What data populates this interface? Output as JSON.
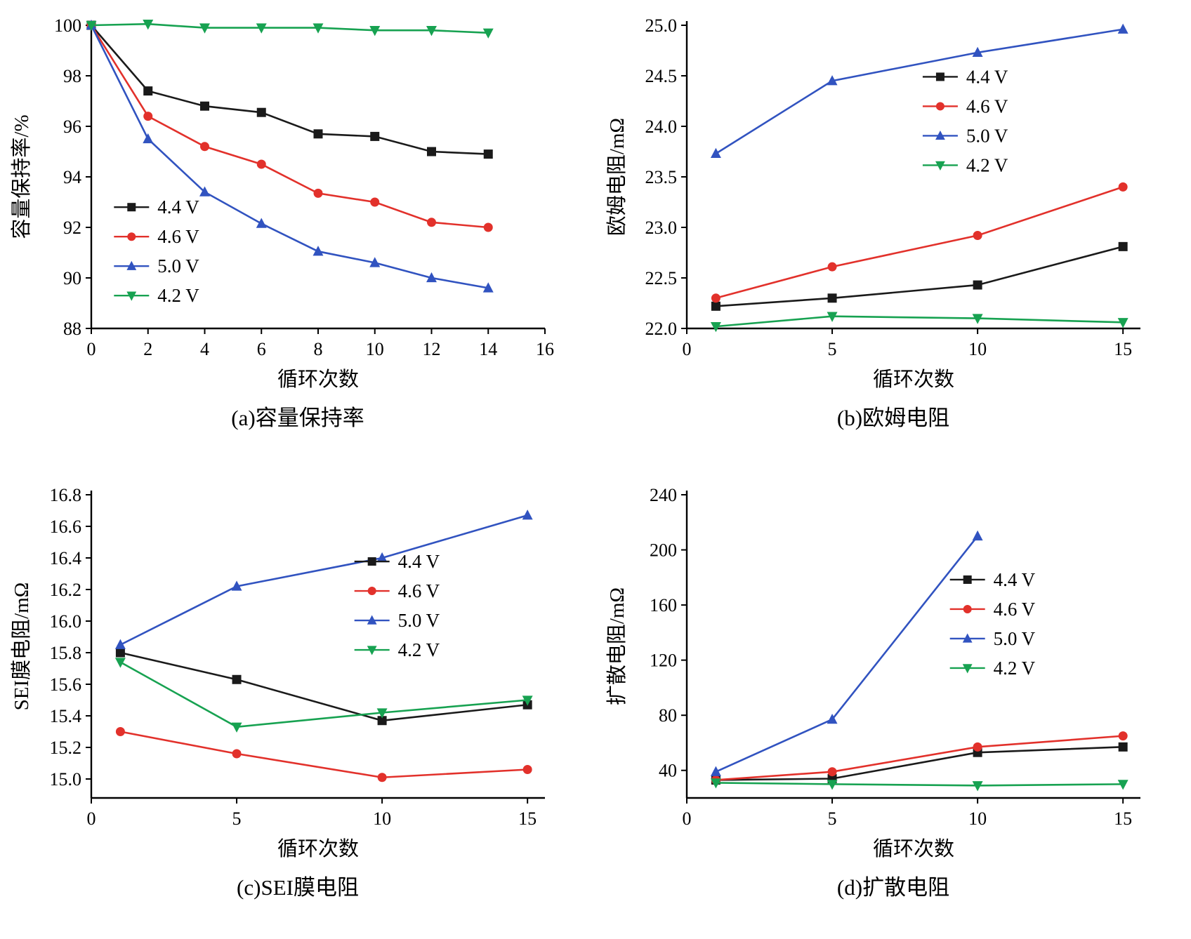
{
  "figure": {
    "description": "Four-panel line-chart figure of battery cycling results at different charge voltages",
    "xlabel_shared": "循环次数",
    "voltages": [
      "4.4 V",
      "4.6 V",
      "5.0 V",
      "4.2 V"
    ],
    "colors": {
      "v44": "#1a1a1a",
      "v46": "#e2312b",
      "v50": "#3153c0",
      "v42": "#17a251"
    }
  },
  "chart_data": [
    {
      "id": "a",
      "type": "line",
      "caption": "(a)容量保持率",
      "xlabel": "循环次数",
      "ylabel": "容量保持率/%",
      "xlim": [
        0,
        16
      ],
      "ylim": [
        88,
        100
      ],
      "xticks": [
        0,
        2,
        4,
        6,
        8,
        10,
        12,
        14,
        16
      ],
      "yticks": [
        88,
        90,
        92,
        94,
        96,
        98,
        100
      ],
      "ytick_labels": [
        "88",
        "90",
        "92",
        "94",
        "96",
        "98",
        "100"
      ],
      "x": [
        0,
        2,
        4,
        6,
        8,
        10,
        12,
        14
      ],
      "series": [
        {
          "name": "4.4 V",
          "color": "#1a1a1a",
          "marker": "square",
          "values": [
            100,
            97.4,
            96.8,
            96.55,
            95.7,
            95.6,
            95.0,
            94.9
          ]
        },
        {
          "name": "4.6 V",
          "color": "#e2312b",
          "marker": "circle",
          "values": [
            100,
            96.4,
            95.2,
            94.5,
            93.35,
            93.0,
            92.2,
            92.0
          ]
        },
        {
          "name": "5.0 V",
          "color": "#3153c0",
          "marker": "triangle-up",
          "values": [
            100,
            95.5,
            93.4,
            92.15,
            91.05,
            90.6,
            90.0,
            89.6
          ]
        },
        {
          "name": "4.2 V",
          "color": "#17a251",
          "marker": "triangle-down",
          "values": [
            100,
            100.05,
            99.9,
            99.9,
            99.9,
            99.8,
            99.8,
            99.7
          ]
        }
      ],
      "legend": {
        "x": 0.05,
        "y": 0.6,
        "dy": 42
      }
    },
    {
      "id": "b",
      "type": "line",
      "caption": "(b)欧姆电阻",
      "xlabel": "循环次数",
      "ylabel": "欧姆电阻/mΩ",
      "xlim": [
        0,
        15.6
      ],
      "ylim": [
        22.0,
        25.0
      ],
      "xticks": [
        0,
        5,
        10,
        15
      ],
      "yticks": [
        22.0,
        22.5,
        23.0,
        23.5,
        24.0,
        24.5,
        25.0
      ],
      "ytick_labels": [
        "22.0",
        "22.5",
        "23.0",
        "23.5",
        "24.0",
        "24.5",
        "25.0"
      ],
      "x": [
        1,
        5,
        10,
        15
      ],
      "series": [
        {
          "name": "4.4 V",
          "color": "#1a1a1a",
          "marker": "square",
          "values": [
            22.22,
            22.3,
            22.43,
            22.81
          ]
        },
        {
          "name": "4.6 V",
          "color": "#e2312b",
          "marker": "circle",
          "values": [
            22.3,
            22.61,
            22.92,
            23.4
          ]
        },
        {
          "name": "5.0 V",
          "color": "#3153c0",
          "marker": "triangle-up",
          "values": [
            23.73,
            24.45,
            24.73,
            24.96
          ]
        },
        {
          "name": "4.2 V",
          "color": "#17a251",
          "marker": "triangle-down",
          "values": [
            22.02,
            22.12,
            22.1,
            22.06
          ]
        }
      ],
      "legend": {
        "x": 0.52,
        "y": 0.17,
        "dy": 42
      }
    },
    {
      "id": "c",
      "type": "line",
      "caption": "(c)SEI膜电阻",
      "xlabel": "循环次数",
      "ylabel": "SEI膜电阻/mΩ",
      "xlim": [
        0,
        15.6
      ],
      "ylim": [
        14.88,
        16.8
      ],
      "xticks": [
        0,
        5,
        10,
        15
      ],
      "yticks": [
        15.0,
        15.2,
        15.4,
        15.6,
        15.8,
        16.0,
        16.2,
        16.4,
        16.6,
        16.8
      ],
      "ytick_labels": [
        "15.0",
        "15.2",
        "15.4",
        "15.6",
        "15.8",
        "16.0",
        "16.2",
        "16.4",
        "16.6",
        "16.8"
      ],
      "x": [
        1,
        5,
        10,
        15
      ],
      "series": [
        {
          "name": "4.4 V",
          "color": "#1a1a1a",
          "marker": "square",
          "values": [
            15.8,
            15.63,
            15.37,
            15.47
          ]
        },
        {
          "name": "4.6 V",
          "color": "#e2312b",
          "marker": "circle",
          "values": [
            15.3,
            15.16,
            15.01,
            15.06
          ]
        },
        {
          "name": "5.0 V",
          "color": "#3153c0",
          "marker": "triangle-up",
          "values": [
            15.85,
            16.22,
            16.4,
            16.67
          ]
        },
        {
          "name": "4.2 V",
          "color": "#17a251",
          "marker": "triangle-down",
          "values": [
            15.74,
            15.33,
            15.42,
            15.5
          ]
        }
      ],
      "legend": {
        "x": 0.58,
        "y": 0.22,
        "dy": 42
      }
    },
    {
      "id": "d",
      "type": "line",
      "caption": "(d)扩散电阻",
      "xlabel": "循环次数",
      "ylabel": "扩散电阻/mΩ",
      "xlim": [
        0,
        15.6
      ],
      "ylim": [
        20,
        240
      ],
      "xticks": [
        0,
        5,
        10,
        15
      ],
      "yticks": [
        40,
        80,
        120,
        160,
        200,
        240
      ],
      "ytick_labels": [
        "40",
        "80",
        "120",
        "160",
        "200",
        "240"
      ],
      "x": [
        1,
        5,
        10,
        15
      ],
      "series": [
        {
          "name": "4.4 V",
          "color": "#1a1a1a",
          "marker": "square",
          "values": [
            33,
            34,
            53,
            57
          ]
        },
        {
          "name": "4.6 V",
          "color": "#e2312b",
          "marker": "circle",
          "values": [
            33,
            39,
            57,
            65
          ]
        },
        {
          "name": "5.0 V",
          "color": "#3153c0",
          "marker": "triangle-up",
          "x": [
            1,
            5,
            10
          ],
          "values": [
            39,
            77,
            210
          ]
        },
        {
          "name": "4.2 V",
          "color": "#17a251",
          "marker": "triangle-down",
          "values": [
            31,
            30,
            29,
            30
          ]
        }
      ],
      "legend": {
        "x": 0.58,
        "y": 0.28,
        "dy": 42
      }
    }
  ]
}
